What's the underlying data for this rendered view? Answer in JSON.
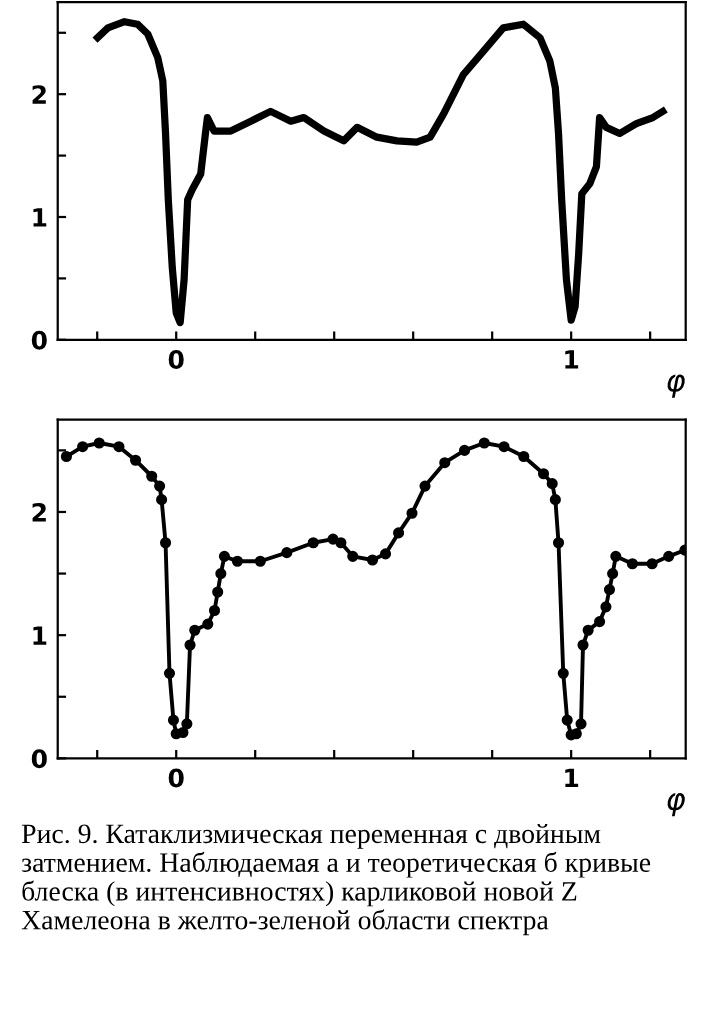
{
  "chart_data": [
    {
      "type": "line",
      "xlabel": "φ",
      "xlim": [
        -0.3,
        1.29
      ],
      "ylim": [
        0,
        2.75
      ],
      "xticks": [
        {
          "value": -0.2,
          "label": null
        },
        0,
        {
          "value": 0.2,
          "label": null
        },
        {
          "value": 0.4,
          "label": null
        },
        {
          "value": 0.6,
          "label": null
        },
        {
          "value": 0.8,
          "label": null
        },
        1,
        {
          "value": 1.2,
          "label": null
        }
      ],
      "yticks": [
        0,
        {
          "value": 0.5,
          "label": null
        },
        1,
        {
          "value": 1.5,
          "label": null
        },
        2,
        {
          "value": 2.5,
          "label": null
        }
      ],
      "grid": false,
      "marker": "none",
      "line_style": "solid",
      "series": [
        {
          "color": "#000000",
          "x": [
            -0.199,
            -0.173,
            -0.131,
            -0.098,
            -0.072,
            -0.047,
            -0.034,
            -0.027,
            -0.02,
            -0.01,
            0.0,
            0.01,
            0.02,
            0.029,
            0.04,
            0.062,
            0.074,
            0.079,
            0.096,
            0.138,
            0.189,
            0.239,
            0.29,
            0.323,
            0.374,
            0.424,
            0.458,
            0.508,
            0.559,
            0.609,
            0.643,
            0.677,
            0.727,
            0.778,
            0.828,
            0.879,
            0.921,
            0.946,
            0.96,
            0.968,
            0.976,
            0.988,
            1.0,
            1.01,
            1.019,
            1.027,
            1.047,
            1.064,
            1.072,
            1.089,
            1.123,
            1.165,
            1.207,
            1.232
          ],
          "values": [
            2.46,
            2.54,
            2.59,
            2.57,
            2.49,
            2.3,
            2.11,
            1.68,
            1.14,
            0.59,
            0.22,
            0.14,
            0.49,
            1.14,
            1.22,
            1.35,
            1.68,
            1.81,
            1.7,
            1.7,
            1.78,
            1.86,
            1.78,
            1.81,
            1.7,
            1.62,
            1.73,
            1.65,
            1.62,
            1.61,
            1.65,
            1.84,
            2.16,
            2.35,
            2.54,
            2.57,
            2.46,
            2.27,
            2.05,
            1.68,
            1.14,
            0.49,
            0.16,
            0.27,
            0.7,
            1.19,
            1.27,
            1.41,
            1.81,
            1.73,
            1.68,
            1.76,
            1.81,
            1.86
          ]
        }
      ]
    },
    {
      "type": "line",
      "xlabel": "φ",
      "xlim": [
        -0.3,
        1.29
      ],
      "ylim": [
        0,
        2.75
      ],
      "xticks": [
        {
          "value": -0.2,
          "label": null
        },
        0,
        {
          "value": 0.2,
          "label": null
        },
        {
          "value": 0.4,
          "label": null
        },
        {
          "value": 0.6,
          "label": null
        },
        {
          "value": 0.8,
          "label": null
        },
        1,
        {
          "value": 1.2,
          "label": null
        }
      ],
      "yticks": [
        0,
        {
          "value": 0.5,
          "label": null
        },
        1,
        {
          "value": 1.5,
          "label": null
        },
        2,
        {
          "value": 2.5,
          "label": null
        }
      ],
      "grid": false,
      "marker": "circle",
      "line_style": "solid",
      "annotations": [
        "Рис. 9. Катаклизмическая переменная с двойным затмением. Наблюдаемая а и теоретическая б кривые блеска (в интенсивностях) карликовой новой Z Хамелеона в желто-зеленой области спектра"
      ],
      "series": [
        {
          "color": "#000000",
          "x": [
            -0.278,
            -0.237,
            -0.195,
            -0.145,
            -0.103,
            -0.062,
            -0.042,
            -0.037,
            -0.027,
            -0.017,
            -0.007,
            0.0,
            0.017,
            0.027,
            0.035,
            0.047,
            0.08,
            0.097,
            0.105,
            0.113,
            0.122,
            0.155,
            0.213,
            0.28,
            0.347,
            0.397,
            0.417,
            0.447,
            0.497,
            0.53,
            0.563,
            0.597,
            0.63,
            0.68,
            0.73,
            0.78,
            0.83,
            0.88,
            0.93,
            0.952,
            0.96,
            0.968,
            0.98,
            0.99,
            1.0,
            1.013,
            1.025,
            1.03,
            1.043,
            1.072,
            1.088,
            1.097,
            1.105,
            1.113,
            1.155,
            1.205,
            1.247,
            1.288
          ],
          "values": [
            2.45,
            2.53,
            2.56,
            2.53,
            2.42,
            2.29,
            2.21,
            2.1,
            1.75,
            0.69,
            0.31,
            0.2,
            0.21,
            0.28,
            0.92,
            1.04,
            1.09,
            1.2,
            1.35,
            1.5,
            1.64,
            1.6,
            1.6,
            1.67,
            1.75,
            1.78,
            1.75,
            1.64,
            1.61,
            1.66,
            1.83,
            1.99,
            2.21,
            2.4,
            2.5,
            2.56,
            2.53,
            2.45,
            2.31,
            2.23,
            2.1,
            1.75,
            0.69,
            0.31,
            0.19,
            0.2,
            0.28,
            0.92,
            1.04,
            1.11,
            1.23,
            1.37,
            1.5,
            1.64,
            1.58,
            1.58,
            1.64,
            1.69
          ]
        }
      ]
    }
  ]
}
